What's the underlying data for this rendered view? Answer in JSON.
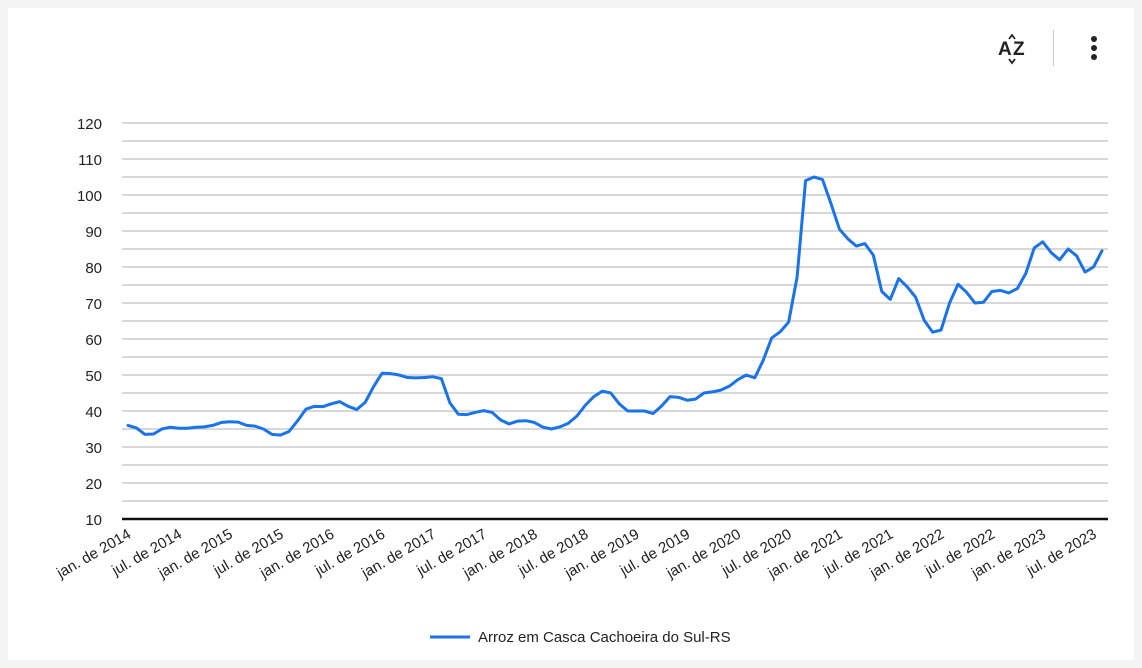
{
  "toolbar": {
    "sort_icon": "sort-az-icon",
    "menu_icon": "more-vert-icon"
  },
  "chart_data": {
    "type": "line",
    "ylim": [
      10,
      120
    ],
    "yticks": [
      10,
      20,
      30,
      40,
      50,
      60,
      70,
      80,
      90,
      100,
      110,
      120
    ],
    "x_tick_labels": [
      "jan. de 2014",
      "jul. de 2014",
      "jan. de 2015",
      "jul. de 2015",
      "jan. de 2016",
      "jul. de 2016",
      "jan. de 2017",
      "jul. de 2017",
      "jan. de 2018",
      "jul. de 2018",
      "jan. de 2019",
      "jul. de 2019",
      "jan. de 2020",
      "jul. de 2020",
      "jan. de 2021",
      "jul. de 2021",
      "jan. de 2022",
      "jul. de 2022",
      "jan. de 2023",
      "jul. de 2023"
    ],
    "grid": true,
    "legend_position": "bottom",
    "series": [
      {
        "name": "Arroz em Casca Cachoeira do Sul-RS",
        "color": "#1a73e8",
        "values": [
          36,
          35.3,
          33.5,
          33.6,
          35,
          35.5,
          35.2,
          35.2,
          35.5,
          35.6,
          36,
          36.8,
          37,
          36.9,
          36,
          35.8,
          35,
          33.5,
          33.3,
          34.3,
          37.2,
          40.5,
          41.3,
          41.2,
          42,
          42.6,
          41.3,
          40.4,
          42.4,
          46.8,
          50.5,
          50.4,
          50,
          49.3,
          49.2,
          49.3,
          49.5,
          49,
          42.3,
          39.1,
          39,
          39.6,
          40.1,
          39.6,
          37.5,
          36.4,
          37.2,
          37.3,
          36.8,
          35.5,
          35,
          35.6,
          36.6,
          38.6,
          41.6,
          44,
          45.5,
          45,
          42,
          40,
          40,
          40,
          39.3,
          41.4,
          44,
          43.8,
          43,
          43.3,
          45,
          45.3,
          45.8,
          46.9,
          48.7,
          50,
          49.2,
          54.1,
          60.3,
          62,
          64.7,
          77.2,
          104,
          105,
          104.3,
          97.6,
          90.5,
          87.8,
          85.8,
          86.5,
          83.3,
          73.2,
          71,
          76.8,
          74.5,
          71.6,
          65.2,
          61.9,
          62.5,
          70,
          75.2,
          73,
          70,
          70.2,
          73.2,
          73.5,
          72.8,
          74,
          78.2,
          85.3,
          87,
          84,
          82,
          85,
          83.1,
          78.6,
          80,
          84.5
        ]
      }
    ]
  }
}
